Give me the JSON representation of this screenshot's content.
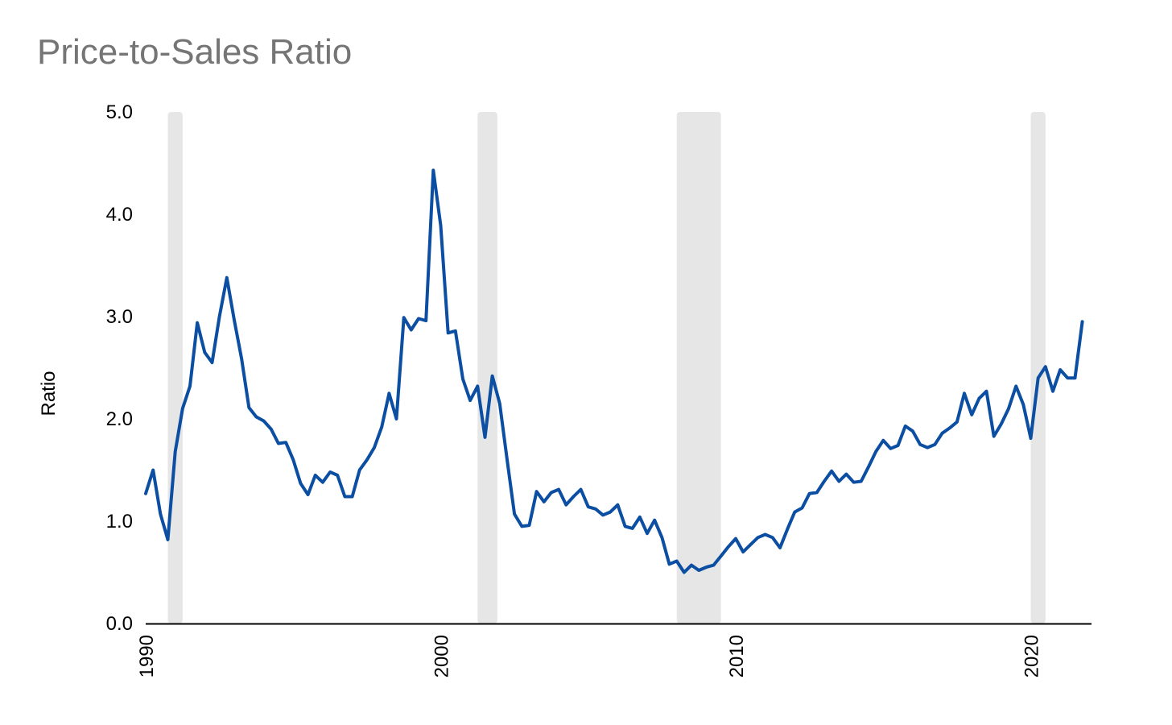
{
  "chart_data": {
    "type": "line",
    "title": "Price-to-Sales Ratio",
    "xlabel": "",
    "ylabel": "Ratio",
    "ylim": [
      0,
      5
    ],
    "yticks": [
      "0.0",
      "1.0",
      "2.0",
      "3.0",
      "4.0",
      "5.0"
    ],
    "xlim": [
      1990,
      2022.0
    ],
    "xticks": [
      "1990",
      "2000",
      "2010",
      "2020"
    ],
    "grid": false,
    "legend": "none",
    "colors": {
      "line": "#0b4ea2",
      "recession": "#e6e6e6",
      "axis": "#000000"
    },
    "recessions": [
      {
        "start": 1990.75,
        "end": 1991.25
      },
      {
        "start": 2001.25,
        "end": 2001.92
      },
      {
        "start": 2008.0,
        "end": 2009.5
      },
      {
        "start": 2020.0,
        "end": 2020.5
      }
    ],
    "series": [
      {
        "x": [
          1990.0,
          1990.25,
          1990.5,
          1990.75,
          1991.0,
          1991.25,
          1991.5,
          1991.75,
          1992.0,
          1992.25,
          1992.5,
          1992.75,
          1993.0,
          1993.25,
          1993.5,
          1993.75,
          1994.0,
          1994.25,
          1994.5,
          1994.75,
          1995.0,
          1995.25,
          1995.5,
          1995.75,
          1996.0,
          1996.25,
          1996.5,
          1996.75,
          1997.0,
          1997.25,
          1997.5,
          1997.75,
          1998.0,
          1998.25,
          1998.5,
          1998.75,
          1999.0,
          1999.25,
          1999.5,
          1999.75,
          2000.0,
          2000.25,
          2000.5,
          2000.75,
          2001.0,
          2001.25,
          2001.5,
          2001.75,
          2002.0,
          2002.25,
          2002.5,
          2002.75,
          2003.0,
          2003.25,
          2003.5,
          2003.75,
          2004.0,
          2004.25,
          2004.5,
          2004.75,
          2005.0,
          2005.25,
          2005.5,
          2005.75,
          2006.0,
          2006.25,
          2006.5,
          2006.75,
          2007.0,
          2007.25,
          2007.5,
          2007.75,
          2008.0,
          2008.25,
          2008.5,
          2008.75,
          2009.0,
          2009.25,
          2009.5,
          2009.75,
          2010.0,
          2010.25,
          2010.5,
          2010.75,
          2011.0,
          2011.25,
          2011.5,
          2011.75,
          2012.0,
          2012.25,
          2012.5,
          2012.75,
          2013.0,
          2013.25,
          2013.5,
          2013.75,
          2014.0,
          2014.25,
          2014.5,
          2014.75,
          2015.0,
          2015.25,
          2015.5,
          2015.75,
          2016.0,
          2016.25,
          2016.5,
          2016.75,
          2017.0,
          2017.25,
          2017.5,
          2017.75,
          2018.0,
          2018.25,
          2018.5,
          2018.75,
          2019.0,
          2019.25,
          2019.5,
          2019.75,
          2020.0,
          2020.25,
          2020.5,
          2020.75,
          2021.0,
          2021.25,
          2021.5,
          2021.75
        ],
        "values": [
          1.27,
          1.5,
          1.07,
          0.82,
          1.68,
          2.1,
          2.32,
          2.94,
          2.65,
          2.55,
          3.0,
          3.38,
          2.97,
          2.59,
          2.11,
          2.02,
          1.98,
          1.9,
          1.76,
          1.77,
          1.6,
          1.37,
          1.26,
          1.45,
          1.38,
          1.48,
          1.45,
          1.24,
          1.24,
          1.5,
          1.6,
          1.72,
          1.92,
          2.25,
          2.0,
          2.99,
          2.87,
          2.98,
          2.96,
          4.43,
          3.89,
          2.84,
          2.86,
          2.39,
          2.18,
          2.32,
          1.82,
          2.42,
          2.15,
          1.6,
          1.07,
          0.95,
          0.96,
          1.29,
          1.19,
          1.28,
          1.31,
          1.16,
          1.24,
          1.31,
          1.14,
          1.12,
          1.06,
          1.09,
          1.16,
          0.95,
          0.93,
          1.04,
          0.88,
          1.01,
          0.84,
          0.58,
          0.61,
          0.5,
          0.57,
          0.52,
          0.55,
          0.57,
          0.66,
          0.75,
          0.83,
          0.7,
          0.77,
          0.84,
          0.87,
          0.84,
          0.74,
          0.92,
          1.09,
          1.13,
          1.27,
          1.28,
          1.39,
          1.49,
          1.39,
          1.46,
          1.38,
          1.39,
          1.53,
          1.68,
          1.79,
          1.71,
          1.74,
          1.93,
          1.88,
          1.75,
          1.72,
          1.75,
          1.86,
          1.91,
          1.97,
          2.25,
          2.04,
          2.2,
          2.27,
          1.83,
          1.95,
          2.1,
          2.32,
          2.14,
          1.81,
          2.4,
          2.51,
          2.27,
          2.48,
          2.4,
          2.4,
          2.95
        ]
      }
    ]
  }
}
